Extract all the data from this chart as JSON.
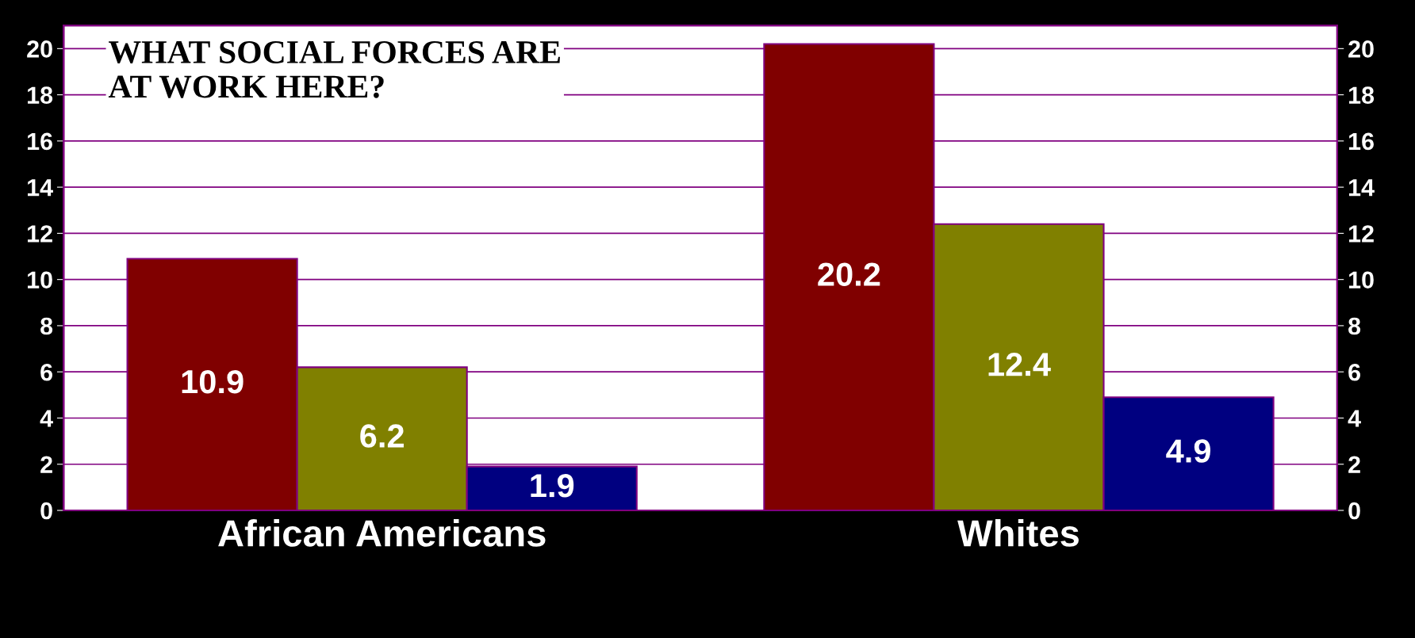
{
  "chart_data": {
    "type": "bar",
    "title": "WHAT SOCIAL FORCES ARE\nAT WORK HERE?",
    "categories": [
      "African Americans",
      "Whites"
    ],
    "series": [
      {
        "color": "#800000",
        "values": [
          10.9,
          20.2
        ]
      },
      {
        "color": "#808000",
        "values": [
          6.2,
          12.4
        ]
      },
      {
        "color": "#000080",
        "values": [
          1.9,
          4.9
        ]
      }
    ],
    "ylim": [
      0,
      21
    ],
    "yticks": [
      0,
      2,
      4,
      6,
      8,
      10,
      12,
      14,
      16,
      18,
      20
    ],
    "y2lim": [
      0,
      21
    ],
    "y2ticks": [
      0,
      2,
      4,
      6,
      8,
      10,
      12,
      14,
      16,
      18,
      20
    ],
    "grid": "y",
    "data_labels": true
  }
}
